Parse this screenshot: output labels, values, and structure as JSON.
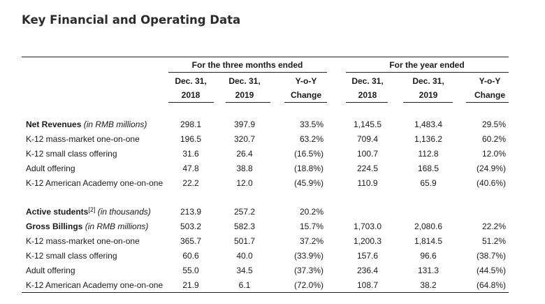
{
  "title": "Key Financial and Operating Data",
  "groups": {
    "three_months": "For the three months ended",
    "year": "For the year ended"
  },
  "columns": [
    {
      "line1": "Dec. 31,",
      "line2": "2018"
    },
    {
      "line1": "Dec. 31,",
      "line2": "2019"
    },
    {
      "line1": "Y-o-Y",
      "line2": "Change"
    },
    {
      "line1": "Dec. 31,",
      "line2": "2018"
    },
    {
      "line1": "Dec. 31,",
      "line2": "2019"
    },
    {
      "line1": "Y-o-Y",
      "line2": "Change"
    }
  ],
  "rows": [
    {
      "label": "Net Revenues",
      "note": " (in RMB millions)",
      "bold": true,
      "values": [
        "298.1",
        "397.9",
        "33.5%",
        "1,145.5",
        "1,483.4",
        "29.5%"
      ]
    },
    {
      "label": "K-12 mass-market one-on-one",
      "values": [
        "196.5",
        "320.7",
        "63.2%",
        "709.4",
        "1,136.2",
        "60.2%"
      ]
    },
    {
      "label": "K-12 small class offering",
      "values": [
        "31.6",
        "26.4",
        "(16.5%)",
        "100.7",
        "112.8",
        "12.0%"
      ]
    },
    {
      "label": "Adult offering",
      "values": [
        "47.8",
        "38.8",
        "(18.8%)",
        "224.5",
        "168.5",
        "(24.9%)"
      ]
    },
    {
      "label": "K-12 American Academy one-on-one",
      "values": [
        "22.2",
        "12.0",
        "(45.9%)",
        "110.9",
        "65.9",
        "(40.6%)"
      ]
    },
    {
      "label": "Active students",
      "sup": "[2]",
      "note": " (in thousands)",
      "bold": true,
      "values": [
        "213.9",
        "257.2",
        "20.2%",
        "",
        "",
        ""
      ]
    },
    {
      "label": "Gross Billings",
      "note": " (in RMB millions)",
      "bold": true,
      "values": [
        "503.2",
        "582.3",
        "15.7%",
        "1,703.0",
        "2,080.6",
        "22.2%"
      ]
    },
    {
      "label": "K-12 mass-market one-on-one",
      "values": [
        "365.7",
        "501.7",
        "37.2%",
        "1,200.3",
        "1,814.5",
        "51.2%"
      ]
    },
    {
      "label": "K-12 small class offering",
      "values": [
        "60.6",
        "40.0",
        "(33.9%)",
        "157.6",
        "96.6",
        "(38.7%)"
      ]
    },
    {
      "label": "Adult offering",
      "values": [
        "55.0",
        "34.5",
        "(37.3%)",
        "236.4",
        "131.3",
        "(44.5%)"
      ]
    },
    {
      "label": "K-12 American Academy one-on-one",
      "values": [
        "21.9",
        "6.1",
        "(72.0%)",
        "108.7",
        "38.2",
        "(64.8%)"
      ]
    }
  ]
}
